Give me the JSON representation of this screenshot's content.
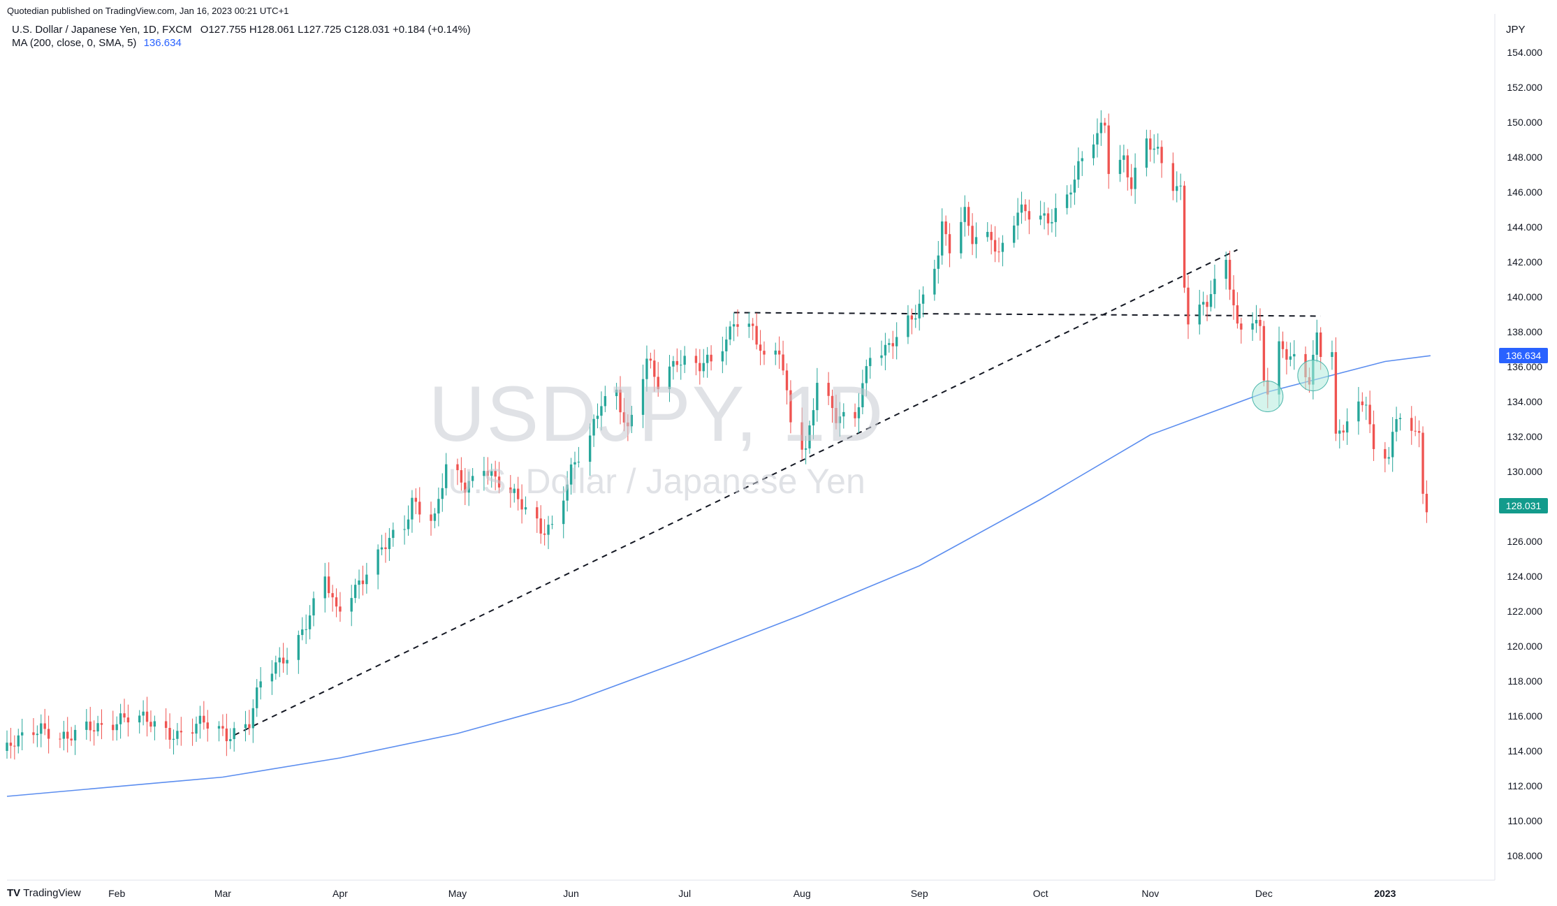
{
  "header": {
    "published": "Quotedian published on TradingView.com, Jan 16, 2023 00:21 UTC+1",
    "symbol_line": "U.S. Dollar / Japanese Yen, 1D, FXCM",
    "ohlc": "O127.755 H128.061 L127.725 C128.031 +0.184 (+0.14%)",
    "ma_label": "MA (200, close, 0, SMA, 5)",
    "ma_value": "136.634"
  },
  "watermark": {
    "symbol": "USDJPY, 1D",
    "name": "U.S. Dollar / Japanese Yen"
  },
  "footer": {
    "brand": "TradingView"
  },
  "colors": {
    "up": "#26a69a",
    "down": "#ef5350",
    "ma": "#5b8def",
    "last_price_tag": "#139b8c",
    "ma_tag": "#2962ff",
    "circle": "#b2ebdc"
  },
  "chart_data": {
    "type": "candlestick",
    "currency": "JPY",
    "timeframe": "1D",
    "y_ticks": [
      108,
      110,
      112,
      114,
      116,
      118,
      120,
      122,
      124,
      126,
      128,
      130,
      132,
      134,
      136,
      138,
      140,
      142,
      144,
      146,
      148,
      150,
      152,
      154
    ],
    "ylim": [
      106.6,
      156.2
    ],
    "x_ticks": [
      {
        "label": "Feb",
        "date": "2022-02-01"
      },
      {
        "label": "Mar",
        "date": "2022-03-01"
      },
      {
        "label": "Apr",
        "date": "2022-04-01"
      },
      {
        "label": "May",
        "date": "2022-05-02"
      },
      {
        "label": "Jun",
        "date": "2022-06-01"
      },
      {
        "label": "Jul",
        "date": "2022-07-01"
      },
      {
        "label": "Aug",
        "date": "2022-08-01"
      },
      {
        "label": "Sep",
        "date": "2022-09-01"
      },
      {
        "label": "Oct",
        "date": "2022-10-03"
      },
      {
        "label": "Nov",
        "date": "2022-11-01"
      },
      {
        "label": "Dec",
        "date": "2022-12-01"
      },
      {
        "label": "2023",
        "date": "2023-01-02"
      }
    ],
    "xlim": [
      "2022-01-03",
      "2023-01-31"
    ],
    "last_price": "128.031",
    "ma_last": "136.634",
    "close_path": [
      [
        "2022-01-03",
        114.0
      ],
      [
        "2022-01-12",
        115.5
      ],
      [
        "2022-01-19",
        114.6
      ],
      [
        "2022-01-26",
        115.4
      ],
      [
        "2022-02-02",
        115.9
      ],
      [
        "2022-02-10",
        115.6
      ],
      [
        "2022-02-17",
        115.0
      ],
      [
        "2022-02-24",
        115.5
      ],
      [
        "2022-03-02",
        115.0
      ],
      [
        "2022-03-08",
        115.7
      ],
      [
        "2022-03-11",
        117.8
      ],
      [
        "2022-03-16",
        119.0
      ],
      [
        "2022-03-21",
        120.6
      ],
      [
        "2022-03-25",
        122.3
      ],
      [
        "2022-03-28",
        123.8
      ],
      [
        "2022-03-31",
        121.8
      ],
      [
        "2022-04-06",
        123.8
      ],
      [
        "2022-04-12",
        125.5
      ],
      [
        "2022-04-18",
        126.7
      ],
      [
        "2022-04-20",
        128.4
      ],
      [
        "2022-04-26",
        127.4
      ],
      [
        "2022-04-29",
        130.2
      ],
      [
        "2022-05-04",
        129.0
      ],
      [
        "2022-05-09",
        130.5
      ],
      [
        "2022-05-13",
        129.4
      ],
      [
        "2022-05-18",
        128.2
      ],
      [
        "2022-05-24",
        126.8
      ],
      [
        "2022-05-27",
        127.0
      ],
      [
        "2022-06-01",
        129.9
      ],
      [
        "2022-06-06",
        131.8
      ],
      [
        "2022-06-09",
        134.2
      ],
      [
        "2022-06-13",
        134.7
      ],
      [
        "2022-06-16",
        132.2
      ],
      [
        "2022-06-21",
        136.2
      ],
      [
        "2022-06-24",
        135.1
      ],
      [
        "2022-06-29",
        136.6
      ],
      [
        "2022-07-05",
        135.9
      ],
      [
        "2022-07-08",
        136.2
      ],
      [
        "2022-07-12",
        137.5
      ],
      [
        "2022-07-14",
        138.9
      ],
      [
        "2022-07-19",
        138.2
      ],
      [
        "2022-07-22",
        136.1
      ],
      [
        "2022-07-26",
        136.9
      ],
      [
        "2022-07-29",
        133.2
      ],
      [
        "2022-08-02",
        131.3
      ],
      [
        "2022-08-05",
        135.1
      ],
      [
        "2022-08-10",
        132.9
      ],
      [
        "2022-08-15",
        133.3
      ],
      [
        "2022-08-19",
        136.9
      ],
      [
        "2022-08-23",
        136.8
      ],
      [
        "2022-08-26",
        137.5
      ],
      [
        "2022-08-30",
        138.8
      ],
      [
        "2022-09-02",
        140.1
      ],
      [
        "2022-09-06",
        142.7
      ],
      [
        "2022-09-07",
        144.0
      ],
      [
        "2022-09-09",
        142.6
      ],
      [
        "2022-09-13",
        144.6
      ],
      [
        "2022-09-15",
        143.4
      ],
      [
        "2022-09-20",
        143.7
      ],
      [
        "2022-09-22",
        142.4
      ],
      [
        "2022-09-27",
        144.7
      ],
      [
        "2022-09-30",
        144.7
      ],
      [
        "2022-10-05",
        144.6
      ],
      [
        "2022-10-10",
        145.7
      ],
      [
        "2022-10-13",
        147.2
      ],
      [
        "2022-10-17",
        148.9
      ],
      [
        "2022-10-20",
        150.1
      ],
      [
        "2022-10-21",
        147.6
      ],
      [
        "2022-10-25",
        148.0
      ],
      [
        "2022-10-27",
        146.3
      ],
      [
        "2022-10-31",
        148.7
      ],
      [
        "2022-11-03",
        148.2
      ],
      [
        "2022-11-07",
        146.6
      ],
      [
        "2022-11-09",
        146.3
      ],
      [
        "2022-11-10",
        140.9
      ],
      [
        "2022-11-11",
        138.7
      ],
      [
        "2022-11-16",
        139.5
      ],
      [
        "2022-11-21",
        142.1
      ],
      [
        "2022-11-24",
        138.4
      ],
      [
        "2022-11-28",
        138.9
      ],
      [
        "2022-11-30",
        138.0
      ],
      [
        "2022-12-01",
        135.3
      ],
      [
        "2022-12-02",
        134.3
      ],
      [
        "2022-12-05",
        136.9
      ],
      [
        "2022-12-09",
        136.6
      ],
      [
        "2022-12-13",
        135.5
      ],
      [
        "2022-12-15",
        137.7
      ],
      [
        "2022-12-16",
        136.7
      ],
      [
        "2022-12-19",
        136.8
      ],
      [
        "2022-12-20",
        131.6
      ],
      [
        "2022-12-23",
        132.9
      ],
      [
        "2022-12-28",
        134.4
      ],
      [
        "2022-12-30",
        131.1
      ],
      [
        "2023-01-03",
        130.9
      ],
      [
        "2023-01-05",
        132.6
      ],
      [
        "2023-01-06",
        133.2
      ],
      [
        "2023-01-10",
        132.0
      ],
      [
        "2023-01-11",
        132.4
      ],
      [
        "2023-01-12",
        129.3
      ],
      [
        "2023-01-13",
        127.8
      ],
      [
        "2023-01-14",
        128.0
      ]
    ],
    "ma200_path": [
      [
        "2022-01-03",
        111.4
      ],
      [
        "2022-03-01",
        112.5
      ],
      [
        "2022-04-01",
        113.6
      ],
      [
        "2022-05-02",
        115.0
      ],
      [
        "2022-06-01",
        116.8
      ],
      [
        "2022-07-01",
        119.2
      ],
      [
        "2022-08-01",
        121.8
      ],
      [
        "2022-09-01",
        124.6
      ],
      [
        "2022-10-03",
        128.4
      ],
      [
        "2022-11-01",
        132.1
      ],
      [
        "2022-12-01",
        134.5
      ],
      [
        "2023-01-02",
        136.3
      ],
      [
        "2023-01-14",
        136.634
      ]
    ],
    "trendlines": [
      {
        "style": "dashed",
        "from": [
          "2022-03-04",
          114.9
        ],
        "to": [
          "2022-11-24",
          142.7
        ]
      },
      {
        "style": "dashed",
        "from": [
          "2022-07-14",
          139.1
        ],
        "to": [
          "2022-12-16",
          138.9
        ]
      }
    ],
    "highlight_circles": [
      {
        "date": "2022-12-02",
        "price": 134.3
      },
      {
        "date": "2022-12-14",
        "price": 135.5
      }
    ]
  }
}
